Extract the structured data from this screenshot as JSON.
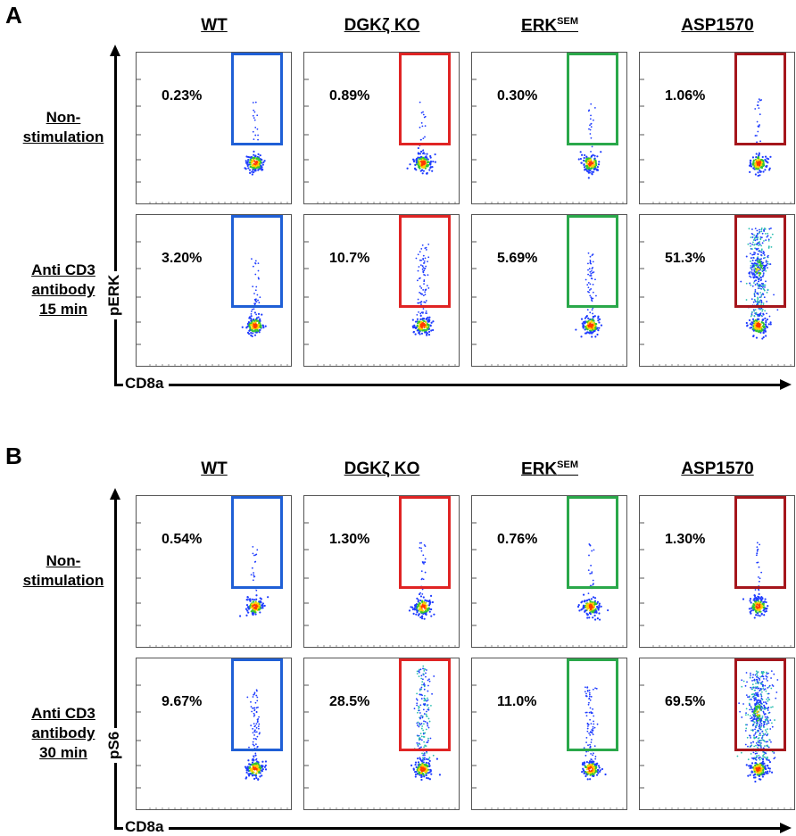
{
  "colors": {
    "WT": "#1f5fd6",
    "DGK": "#e02424",
    "ERK": "#2aa84a",
    "ASP": "#a5161c"
  },
  "panels": [
    {
      "letter": "A",
      "columns": [
        {
          "main": "WT",
          "sup": ""
        },
        {
          "main": "DGKζ KO",
          "sup": ""
        },
        {
          "main": "ERK",
          "sup": "SEM"
        },
        {
          "main": "ASP1570",
          "sup": ""
        }
      ],
      "rows": [
        {
          "label_lines": [
            "Non-",
            "stimulation"
          ],
          "values": [
            "0.23%",
            "0.89%",
            "0.30%",
            "1.06%"
          ]
        },
        {
          "label_lines": [
            "Anti CD3",
            "antibody",
            "15 min"
          ],
          "values": [
            "3.20%",
            "10.7%",
            "5.69%",
            "51.3%"
          ]
        }
      ],
      "y_axis": "pERK",
      "x_axis": "CD8a"
    },
    {
      "letter": "B",
      "columns": [
        {
          "main": "WT",
          "sup": ""
        },
        {
          "main": "DGKζ KO",
          "sup": ""
        },
        {
          "main": "ERK",
          "sup": "SEM"
        },
        {
          "main": "ASP1570",
          "sup": ""
        }
      ],
      "rows": [
        {
          "label_lines": [
            "Non-",
            "stimulation"
          ],
          "values": [
            "0.54%",
            "1.30%",
            "0.76%",
            "1.30%"
          ]
        },
        {
          "label_lines": [
            "Anti CD3",
            "antibody",
            "30 min"
          ],
          "values": [
            "9.67%",
            "28.5%",
            "11.0%",
            "69.5%"
          ]
        }
      ],
      "y_axis": "pS6",
      "x_axis": "CD8a"
    }
  ]
}
